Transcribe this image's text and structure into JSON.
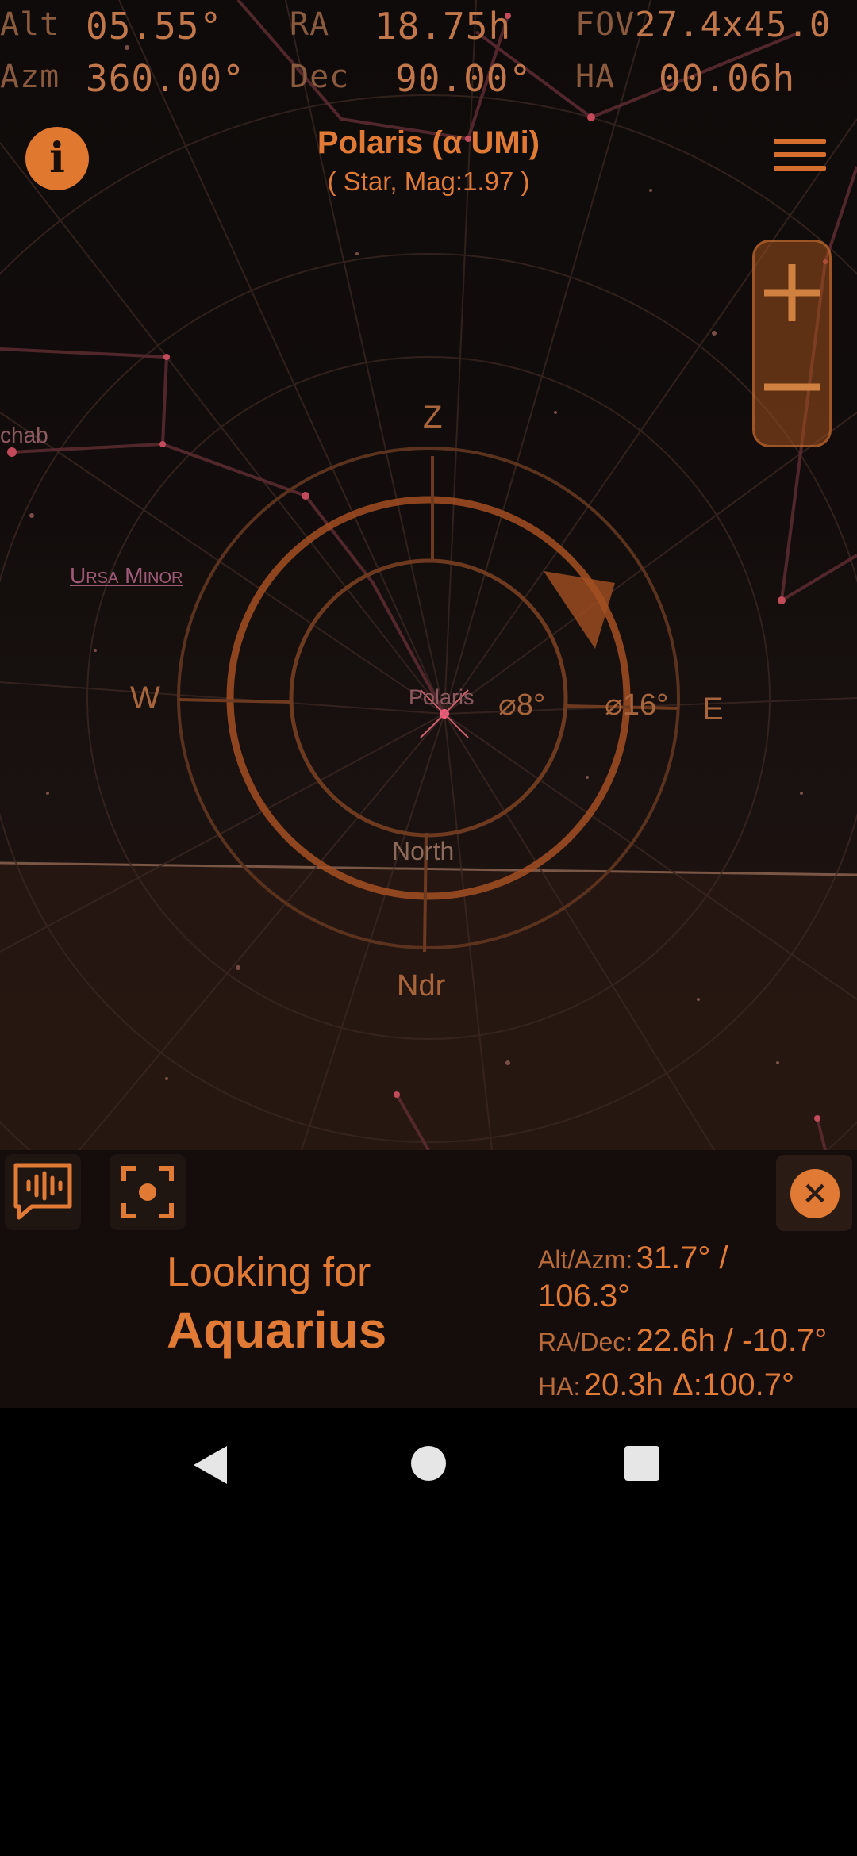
{
  "hud": {
    "alt_label": "Alt",
    "alt_value": "05.55°",
    "ra_label": "RA",
    "ra_value": "18.75h",
    "fov_label": "FOV",
    "fov_value": "27.4x45.0",
    "azm_label": "Azm",
    "azm_value": "360.00°",
    "dec_label": "Dec",
    "dec_value": "90.00°",
    "ha_label": "HA",
    "ha_value": "00.06h"
  },
  "header": {
    "info_icon": "i",
    "object_name": "Polaris (α UMi)",
    "object_detail": "( Star, Mag:1.97 )"
  },
  "sky": {
    "zenith": "Z",
    "nadir": "Ndr",
    "west": "W",
    "east": "E",
    "direction": "North",
    "star_label": "Polaris",
    "partial_star": "chab",
    "constellation": "Ursa Minor",
    "ring_inner": "⌀8°",
    "ring_outer": "⌀16°"
  },
  "target": {
    "looking_for": "Looking for",
    "name": "Aquarius",
    "altazm_label": "Alt/Azm:",
    "altazm_value_1": "31.7° /",
    "altazm_value_2": "106.3°",
    "radec_label": "RA/Dec:",
    "radec_value": "22.6h / -10.7°",
    "ha_label": "HA:",
    "ha_value": "20.3h Δ:100.7°"
  },
  "icons": {
    "info": "info-icon",
    "menu": "menu-icon",
    "zoom_in": "plus-icon",
    "zoom_out": "minus-icon",
    "voice": "voice-feedback-icon",
    "center": "center-focus-icon",
    "close": "close-icon",
    "back": "back-triangle-icon",
    "home": "home-circle-icon",
    "recents": "recents-square-icon"
  },
  "colors": {
    "accent": "#e07a34",
    "hud_label": "#8a5a3e",
    "hud_value": "#c2774a",
    "background": "#120d0c"
  }
}
